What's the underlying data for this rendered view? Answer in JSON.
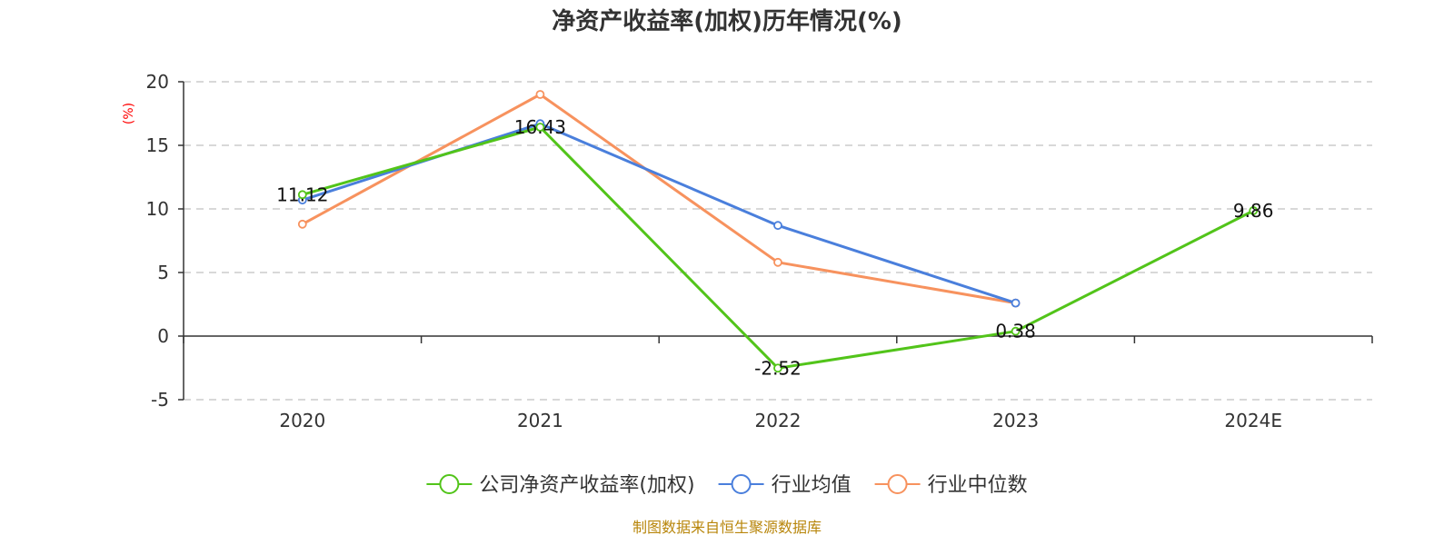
{
  "chart_data": {
    "type": "line",
    "title": "净资产收益率(加权)历年情况(%)",
    "ylabel": "(%)",
    "xlabel": "",
    "categories": [
      "2020",
      "2021",
      "2022",
      "2023",
      "2024E"
    ],
    "ylim": [
      -5,
      20
    ],
    "yticks": [
      -5,
      0,
      5,
      10,
      15,
      20
    ],
    "grid": true,
    "legend_position": "bottom",
    "series": [
      {
        "name": "公司净资产收益率(加权)",
        "color": "#52c41a",
        "values": [
          11.12,
          16.43,
          -2.52,
          0.38,
          9.86
        ],
        "labels": [
          "11.12",
          "16.43",
          "-2.52",
          "0.38",
          "9.86"
        ]
      },
      {
        "name": "行业均值",
        "color": "#4a7fdc",
        "values": [
          10.7,
          16.7,
          8.7,
          2.6,
          null
        ]
      },
      {
        "name": "行业中位数",
        "color": "#f7925e",
        "values": [
          8.8,
          19.0,
          5.8,
          2.6,
          null
        ]
      }
    ]
  },
  "source": "制图数据来自恒生聚源数据库"
}
